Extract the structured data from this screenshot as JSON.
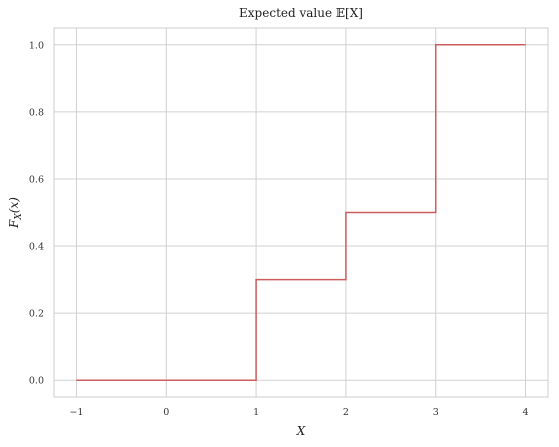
{
  "chart_data": {
    "type": "line",
    "step": "post",
    "title": "Expected value 𝔼[X]",
    "xlabel": "X",
    "ylabel": "F_X(x)",
    "xlim": [
      -1.25,
      4.25
    ],
    "ylim": [
      -0.05,
      1.05
    ],
    "xticks": [
      -1,
      0,
      1,
      2,
      3,
      4
    ],
    "xtick_labels": [
      "−1",
      "0",
      "1",
      "2",
      "3",
      "4"
    ],
    "yticks": [
      0.0,
      0.2,
      0.4,
      0.6,
      0.8,
      1.0
    ],
    "ytick_labels": [
      "0.0",
      "0.2",
      "0.4",
      "0.6",
      "0.8",
      "1.0"
    ],
    "grid": true,
    "series": [
      {
        "color": "#cd5c5c",
        "x": [
          -1,
          1,
          2,
          3,
          4
        ],
        "y": [
          0.0,
          0.3,
          0.5,
          1.0,
          1.0
        ]
      }
    ]
  }
}
